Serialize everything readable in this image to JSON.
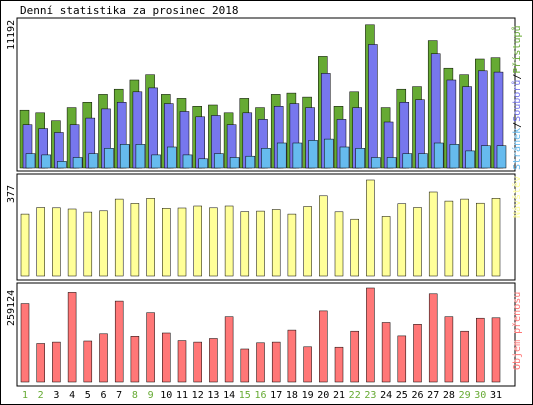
{
  "title": "Denní statistika za prosinec 2018",
  "colors": {
    "hits": "#66aa33",
    "files": "#7777ee",
    "pages": "#66bbee",
    "visits": "#ffff99",
    "kbytes": "#ff7777",
    "weekday_label": "#000000",
    "weekend_label": "#66aa33"
  },
  "chart_data": [
    {
      "type": "bar",
      "title": "Denní statistika za prosinec 2018",
      "panel": "hits",
      "ymax_label": "11192",
      "y_range": [
        0,
        11192
      ],
      "legend_vertical": {
        "parts": [
          "Stránek",
          "/",
          "Souborů",
          "/",
          "Přístupů"
        ],
        "colors": [
          "#66bbee",
          "#000000",
          "#7777ee",
          "#000000",
          "#66aa33"
        ],
        "placement": "right"
      },
      "categories": [
        "1",
        "2",
        "3",
        "4",
        "5",
        "6",
        "7",
        "8",
        "9",
        "10",
        "11",
        "12",
        "13",
        "14",
        "15",
        "16",
        "17",
        "18",
        "19",
        "20",
        "21",
        "22",
        "23",
        "24",
        "25",
        "26",
        "27",
        "28",
        "29",
        "30",
        "31"
      ],
      "series": [
        {
          "name": "Přístupů",
          "values": [
            4400,
            4200,
            3600,
            4600,
            5000,
            5600,
            6000,
            6700,
            7100,
            5600,
            5300,
            4700,
            4800,
            4200,
            5300,
            4600,
            5600,
            5700,
            5400,
            8500,
            4700,
            5800,
            10900,
            4600,
            6000,
            6200,
            9700,
            7600,
            7100,
            8300,
            8400
          ]
        },
        {
          "name": "Souborů",
          "values": [
            3300,
            3000,
            2700,
            3300,
            3800,
            4500,
            5000,
            5800,
            6100,
            4900,
            4300,
            3900,
            4000,
            3300,
            4200,
            3700,
            4700,
            4900,
            4600,
            7200,
            3700,
            4600,
            9400,
            3500,
            5000,
            5200,
            8700,
            6700,
            6200,
            7400,
            7300
          ]
        },
        {
          "name": "Stránek",
          "values": [
            1100,
            1000,
            500,
            800,
            1100,
            1500,
            1800,
            1800,
            1000,
            1600,
            1000,
            700,
            1100,
            800,
            900,
            1500,
            1900,
            1900,
            2100,
            2200,
            1600,
            1500,
            800,
            800,
            1100,
            1100,
            1900,
            1800,
            1300,
            1700,
            1700
          ]
        }
      ]
    },
    {
      "type": "bar",
      "panel": "visits",
      "ymax_label": "377",
      "y_range": [
        0,
        377
      ],
      "legend_vertical": {
        "parts": [
          "Návštěv"
        ],
        "colors": [
          "#ffff99"
        ],
        "placement": "right"
      },
      "categories": [
        "1",
        "2",
        "3",
        "4",
        "5",
        "6",
        "7",
        "8",
        "9",
        "10",
        "11",
        "12",
        "13",
        "14",
        "15",
        "16",
        "17",
        "18",
        "19",
        "20",
        "21",
        "22",
        "23",
        "24",
        "25",
        "26",
        "27",
        "28",
        "29",
        "30",
        "31"
      ],
      "series": [
        {
          "name": "Návštěv",
          "values": [
            243,
            269,
            268,
            263,
            251,
            256,
            302,
            285,
            305,
            266,
            267,
            275,
            268,
            275,
            253,
            255,
            261,
            243,
            273,
            315,
            252,
            223,
            377,
            234,
            284,
            269,
            330,
            294,
            302,
            286,
            305
          ]
        }
      ]
    },
    {
      "type": "bar",
      "panel": "kbytes",
      "ymax_label": "259124",
      "y_range": [
        0,
        259124
      ],
      "legend_vertical": {
        "parts": [
          "Objem přenosu"
        ],
        "colors": [
          "#ff7777"
        ],
        "placement": "right"
      },
      "categories": [
        "1",
        "2",
        "3",
        "4",
        "5",
        "6",
        "7",
        "8",
        "9",
        "10",
        "11",
        "12",
        "13",
        "14",
        "15",
        "16",
        "17",
        "18",
        "19",
        "20",
        "21",
        "22",
        "23",
        "24",
        "25",
        "26",
        "27",
        "28",
        "29",
        "30",
        "31"
      ],
      "series": [
        {
          "name": "Objem přenosu",
          "values": [
            216000,
            106000,
            110000,
            247000,
            113000,
            133000,
            223000,
            126000,
            191000,
            135000,
            114000,
            110000,
            120000,
            180000,
            91000,
            108000,
            110000,
            143000,
            97000,
            196000,
            96000,
            140000,
            259000,
            164000,
            127000,
            159000,
            243000,
            180000,
            140000,
            176000,
            177000
          ]
        }
      ]
    }
  ],
  "day_labels": [
    "1",
    "2",
    "3",
    "4",
    "5",
    "6",
    "7",
    "8",
    "9",
    "10",
    "11",
    "12",
    "13",
    "14",
    "15",
    "16",
    "17",
    "18",
    "19",
    "20",
    "21",
    "22",
    "23",
    "24",
    "25",
    "26",
    "27",
    "28",
    "29",
    "30",
    "31"
  ],
  "weekend_days": [
    "1",
    "2",
    "8",
    "9",
    "15",
    "16",
    "22",
    "23",
    "29",
    "30"
  ]
}
